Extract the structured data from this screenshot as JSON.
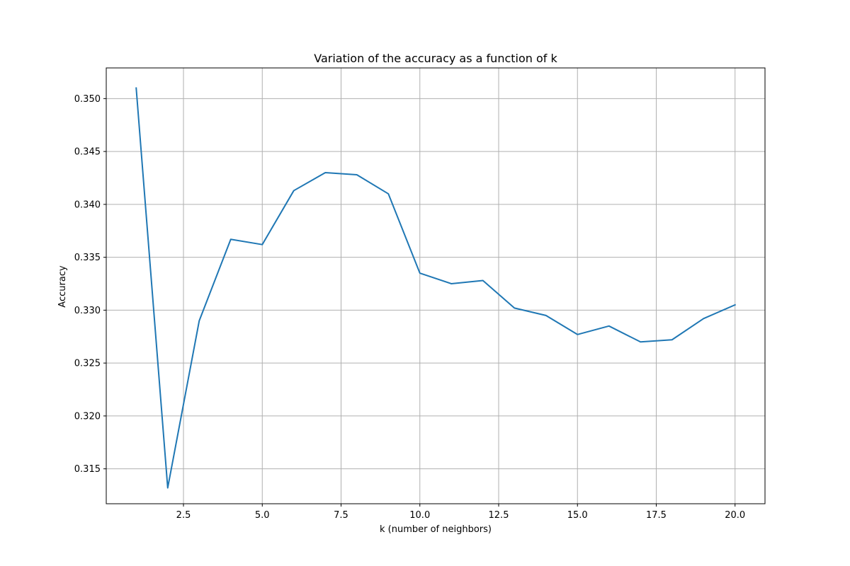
{
  "chart_data": {
    "type": "line",
    "title": "Variation of the accuracy as a function of k",
    "xlabel": "k (number of neighbors)",
    "ylabel": "Accuracy",
    "xlim": [
      0.05,
      20.95
    ],
    "ylim": [
      0.3117,
      0.3529
    ],
    "xticks": [
      2.5,
      5.0,
      7.5,
      10.0,
      12.5,
      15.0,
      17.5,
      20.0
    ],
    "xtick_labels": [
      "2.5",
      "5.0",
      "7.5",
      "10.0",
      "12.5",
      "15.0",
      "17.5",
      "20.0"
    ],
    "yticks": [
      0.315,
      0.32,
      0.325,
      0.33,
      0.335,
      0.34,
      0.345,
      0.35
    ],
    "ytick_labels": [
      "0.315",
      "0.320",
      "0.325",
      "0.330",
      "0.335",
      "0.340",
      "0.345",
      "0.350"
    ],
    "grid": true,
    "legend": false,
    "series": [
      {
        "color": "#1f77b4",
        "x": [
          1,
          2,
          3,
          4,
          5,
          6,
          7,
          8,
          9,
          10,
          11,
          12,
          13,
          14,
          15,
          16,
          17,
          18,
          19,
          20
        ],
        "y": [
          0.351,
          0.3132,
          0.329,
          0.3367,
          0.3362,
          0.3413,
          0.343,
          0.3428,
          0.341,
          0.3335,
          0.3325,
          0.3328,
          0.3302,
          0.3295,
          0.3277,
          0.3285,
          0.327,
          0.3272,
          0.3292,
          0.3305
        ]
      }
    ]
  }
}
